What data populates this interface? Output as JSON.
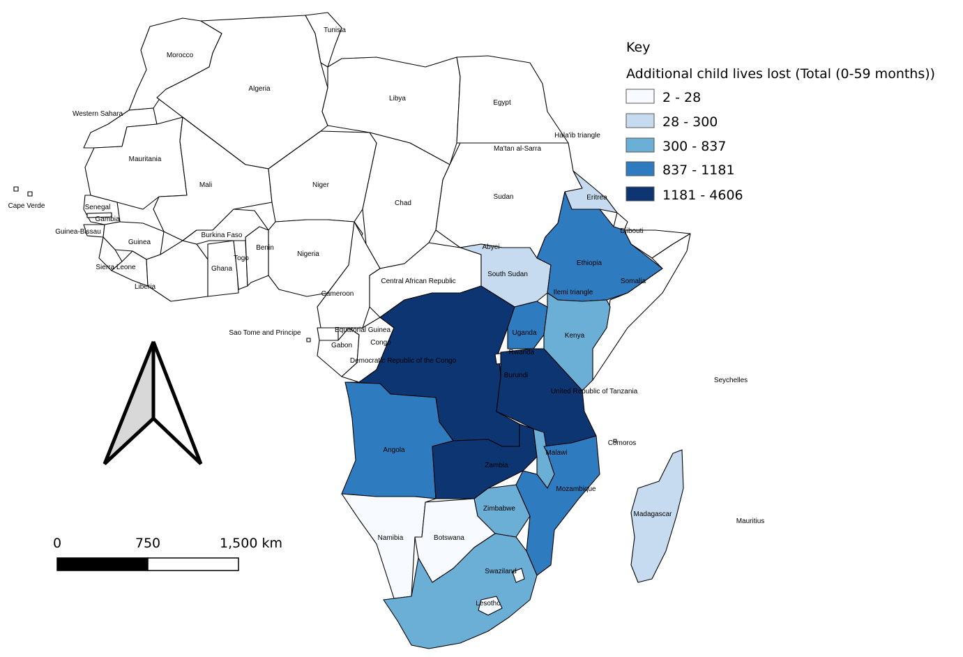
{
  "legend": {
    "heading": "Key",
    "title": "Additional child lives lost (Total (0-59 months))",
    "classes": [
      {
        "range": "2 - 28",
        "color": "#f7fbff"
      },
      {
        "range": "28 - 300",
        "color": "#c6dbef"
      },
      {
        "range": "300 - 837",
        "color": "#6baed6"
      },
      {
        "range": "837 - 1181",
        "color": "#2f7bbf"
      },
      {
        "range": "1181 - 4606",
        "color": "#0c3572"
      }
    ]
  },
  "scale_bar": {
    "tick_0": "0",
    "tick_mid": "750",
    "tick_end": "1,500 km"
  },
  "north_arrow": {
    "icon": "north-arrow-icon"
  },
  "country_labels": {
    "morocco": "Morocco",
    "algeria": "Algeria",
    "libya": "Libya",
    "egypt": "Egypt",
    "western_sahara": "Western Sahara",
    "mauritania": "Mauritania",
    "mali": "Mali",
    "niger": "Niger",
    "chad": "Chad",
    "sudan": "Sudan",
    "halaib": "Hala'ib triangle",
    "maatan": "Ma'tan al-Sarra",
    "tunisia": "Tunisia",
    "cape_verde": "Cape Verde",
    "senegal": "Senegal",
    "gambia": "Gambia",
    "guinea_bissau": "Guinea-Bissau",
    "guinea": "Guinea",
    "sierra_leone": "Sierra Leone",
    "liberia": "Liberia",
    "burkina_faso": "Burkina Faso",
    "ghana": "Ghana",
    "togo": "Togo",
    "benin": "Benin",
    "nigeria": "Nigeria",
    "cameroon": "Cameroon",
    "car": "Central African Republic",
    "south_sudan": "South Sudan",
    "abyei": "Abyei",
    "eritrea": "Eritrea",
    "djibouti": "Djibouti",
    "ethiopia": "Ethiopia",
    "somalia": "Somalia",
    "ilemi": "Ilemi triangle",
    "kenya": "Kenya",
    "uganda": "Uganda",
    "rwanda": "Rwanda",
    "burundi": "Burundi",
    "tanzania": "United Republic of Tanzania",
    "drc": "Democratic Republic of the Congo",
    "congo": "Congo",
    "gabon": "Gabon",
    "eq_guinea": "Equatorial Guinea",
    "sao_tome": "Sao Tome and Principe",
    "angola": "Angola",
    "zambia": "Zambia",
    "malawi": "Malawi",
    "mozambique": "Mozambique",
    "zimbabwe": "Zimbabwe",
    "namibia": "Namibia",
    "botswana": "Botswana",
    "swaziland": "Swaziland",
    "lesotho": "Lesotho",
    "madagascar": "Madagascar",
    "comoros": "Comoros",
    "seychelles": "Seychelles",
    "mauritius": "Mauritius"
  },
  "country_values": {
    "tunisia": "#ffffff",
    "morocco": "#ffffff",
    "algeria": "#ffffff",
    "libya": "#ffffff",
    "egypt": "#ffffff",
    "western_sahara": "#ffffff",
    "mauritania": "#ffffff",
    "mali": "#ffffff",
    "niger": "#ffffff",
    "chad": "#ffffff",
    "sudan": "#ffffff",
    "senegal": "#ffffff",
    "gambia": "#ffffff",
    "guinea_bissau": "#ffffff",
    "guinea": "#ffffff",
    "sierra_leone": "#ffffff",
    "liberia": "#ffffff",
    "ivory_coast": "#ffffff",
    "burkina_faso": "#ffffff",
    "ghana": "#ffffff",
    "togo": "#ffffff",
    "benin": "#ffffff",
    "nigeria": "#ffffff",
    "cameroon": "#ffffff",
    "car": "#ffffff",
    "eq_guinea": "#ffffff",
    "gabon": "#ffffff",
    "congo": "#ffffff",
    "djibouti": "#ffffff",
    "somaliland": "#ffffff",
    "south_sudan": "#c6dbef",
    "eritrea": "#c6dbef",
    "madagascar": "#c6dbef",
    "ethiopia": "#2f7bbf",
    "uganda": "#2f7bbf",
    "angola": "#2f7bbf",
    "mozambique": "#2f7bbf",
    "kenya": "#6baed6",
    "malawi": "#6baed6",
    "zimbabwe": "#6baed6",
    "south_africa": "#6baed6",
    "drc": "#0c3572",
    "tanzania": "#0c3572",
    "zambia": "#0c3572",
    "namibia": "#f7fbff",
    "botswana": "#f7fbff",
    "lesotho": "#f7fbff",
    "swaziland": "#ffffff",
    "rwanda": "#ffffff"
  }
}
